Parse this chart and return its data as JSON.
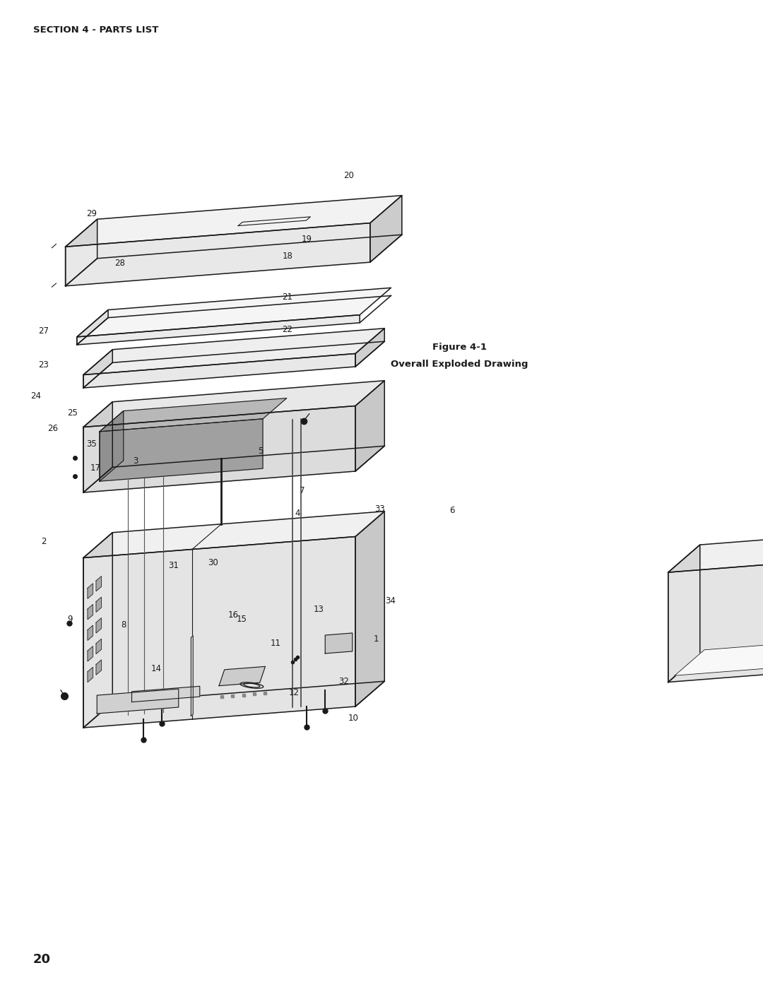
{
  "title_section": "SECTION 4 - PARTS LIST",
  "figure_label": "Figure 4-1",
  "figure_desc": "Overall Exploded Drawing",
  "page_number": "20",
  "bg_color": "#ffffff",
  "line_color": "#1a1a1a",
  "face_top": "#f0f0f0",
  "face_left": "#d8d8d8",
  "face_right": "#c8c8c8",
  "face_front": "#e4e4e4",
  "heat_fill": "#c0c0c0",
  "title_fontsize": 9.5,
  "label_fontsize": 8.5,
  "figure_label_fontsize": 9.5,
  "page_fontsize": 13
}
